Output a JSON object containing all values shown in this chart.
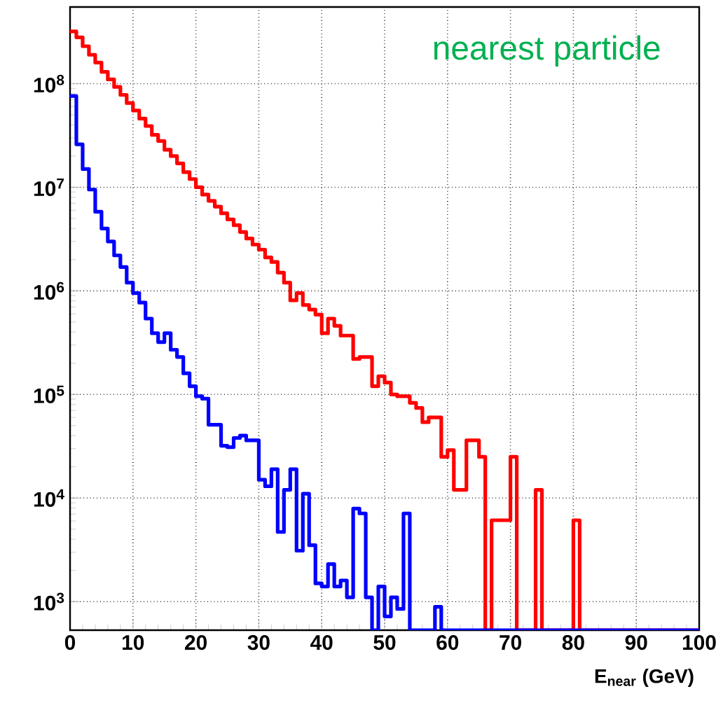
{
  "chart_data": {
    "type": "histogram",
    "xlabel": "E$_{near}$ (GeV)",
    "annotations": [
      "nearest particle"
    ],
    "log": "y",
    "grid": true,
    "xlim": [
      0,
      100
    ],
    "ylim": [
      530,
      550000000
    ],
    "xticks": [
      0,
      10,
      20,
      30,
      40,
      50,
      60,
      70,
      80,
      90,
      100
    ],
    "yticks": [
      {
        "value": 1000,
        "label": "10$^{3}$"
      },
      {
        "value": 10000,
        "label": "10$^{4}$"
      },
      {
        "value": 100000,
        "label": "10$^{5}$"
      },
      {
        "value": 1000000,
        "label": "10$^{6}$"
      },
      {
        "value": 10000000,
        "label": "10$^{7}$"
      },
      {
        "value": 100000000,
        "label": "10$^{8}$"
      }
    ],
    "bins": [
      0,
      1,
      2,
      3,
      4,
      5,
      6,
      7,
      8,
      9,
      10,
      11,
      12,
      13,
      14,
      15,
      16,
      17,
      18,
      19,
      20,
      21,
      22,
      23,
      24,
      25,
      26,
      27,
      28,
      29,
      30,
      31,
      32,
      33,
      34,
      35,
      36,
      37,
      38,
      39,
      40,
      41,
      42,
      43,
      44,
      45,
      46,
      47,
      48,
      49,
      50,
      51,
      52,
      53,
      54,
      55,
      56,
      57,
      58,
      59,
      60,
      61,
      62,
      63,
      64,
      65,
      66,
      67,
      68,
      69,
      70,
      71,
      72,
      73,
      74,
      75,
      76,
      77,
      78,
      79,
      80,
      81,
      82,
      83,
      84,
      85,
      86,
      87,
      88,
      89,
      90,
      91,
      92,
      93,
      94,
      95,
      96,
      97,
      98,
      99,
      100
    ],
    "series": [
      {
        "color": "#ff0000",
        "values": [
          320000000.0,
          280000000.0,
          230000000.0,
          190000000.0,
          160000000.0,
          130000000.0,
          110000000.0,
          93000000.0,
          78000000.0,
          65000000.0,
          55000000.0,
          46000000.0,
          39000000.0,
          32000000.0,
          28000000.0,
          23000000.0,
          20000000.0,
          17000000.0,
          14000000.0,
          12000000.0,
          10000000.0,
          8500000.0,
          7400000.0,
          6500000.0,
          5600000.0,
          4900000.0,
          4300000.0,
          3700000.0,
          3200000.0,
          2800000.0,
          2500000.0,
          2100000.0,
          1900000.0,
          1500000.0,
          1200000.0,
          810000.0,
          950000.0,
          730000.0,
          660000.0,
          590000.0,
          390000.0,
          540000.0,
          460000.0,
          370000.0,
          370000.0,
          220000.0,
          230000.0,
          230000.0,
          120000.0,
          150000.0,
          130000.0,
          100000.0,
          96000.0,
          96000.0,
          83000.0,
          74000.0,
          54000.0,
          60000.0,
          60000.0,
          25000.0,
          29000.0,
          12000.0,
          12000.0,
          36000.0,
          36000.0,
          25000.0,
          null,
          6100.0,
          6100.0,
          6100.0,
          25000.0,
          null,
          null,
          null,
          12000.0,
          null,
          null,
          null,
          null,
          null,
          6100.0,
          null,
          null,
          null,
          null,
          null,
          null,
          null,
          null,
          null,
          null,
          null,
          null,
          null,
          null,
          null,
          null,
          null,
          null,
          null
        ]
      },
      {
        "color": "#0000ff",
        "values": [
          76000000.0,
          26000000.0,
          15000000.0,
          9500000.0,
          5800000.0,
          4000000.0,
          3000000.0,
          2200000.0,
          1700000.0,
          1200000.0,
          950000.0,
          770000.0,
          540000.0,
          390000.0,
          320000.0,
          390000.0,
          270000.0,
          230000.0,
          160000.0,
          120000.0,
          96000.0,
          91000.0,
          51000.0,
          51000.0,
          32000.0,
          31000.0,
          38000.0,
          40000.0,
          36000.0,
          36000.0,
          15000.0,
          13000.0,
          19000.0,
          4700.0,
          12000.0,
          19000.0,
          3100.0,
          11000.0,
          3500.0,
          1500.0,
          1400.0,
          2300.0,
          1400.0,
          1600.0,
          1100.0,
          7900.0,
          7100.0,
          1100.0,
          null,
          1400.0,
          720.0,
          1100.0,
          850.0,
          7100.0,
          null,
          null,
          null,
          null,
          890.0,
          null,
          null,
          null,
          null,
          null,
          null,
          null,
          null,
          null,
          null,
          null,
          null,
          null,
          null,
          null,
          null,
          null,
          null,
          null,
          null,
          null,
          null,
          null,
          null,
          null,
          null,
          null,
          null,
          null,
          null,
          null,
          null,
          null,
          null,
          null,
          null,
          null,
          null,
          null,
          null,
          null
        ]
      }
    ]
  }
}
